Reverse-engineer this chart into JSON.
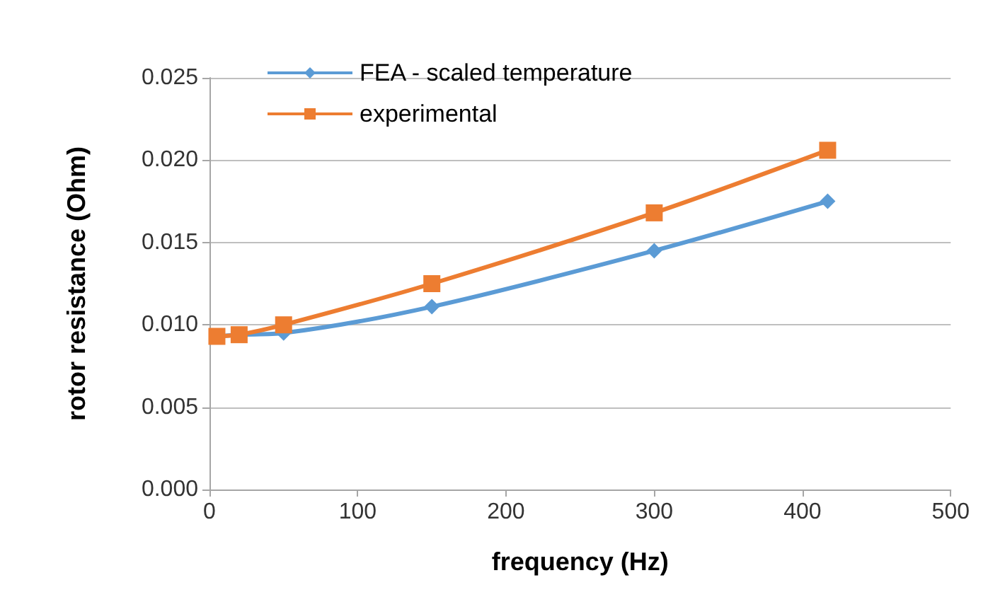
{
  "chart_data": {
    "type": "line",
    "xlabel": "frequency (Hz)",
    "ylabel": "rotor resistance (Ohm)",
    "x": [
      5,
      20,
      50,
      150,
      300,
      417
    ],
    "series": [
      {
        "name": "FEA - scaled temperature",
        "color": "#5b9bd5",
        "marker": "diamond",
        "values": [
          0.0093,
          0.0094,
          0.0095,
          0.0111,
          0.0145,
          0.0175
        ]
      },
      {
        "name": "experimental",
        "color": "#ed7d31",
        "marker": "square",
        "values": [
          0.0093,
          0.0094,
          0.01,
          0.0125,
          0.0168,
          0.0206
        ]
      }
    ],
    "xlim": [
      0,
      500
    ],
    "xticks": [
      0,
      100,
      200,
      300,
      400,
      500
    ],
    "ylim": [
      0,
      0.025
    ],
    "yticks": [
      {
        "value": 0,
        "label": "0.000"
      },
      {
        "value": 0.005,
        "label": "0.005"
      },
      {
        "value": 0.01,
        "label": "0.010"
      },
      {
        "value": 0.015,
        "label": "0.015"
      },
      {
        "value": 0.02,
        "label": "0.020"
      },
      {
        "value": 0.025,
        "label": "0.025"
      }
    ],
    "grid": "y",
    "legend": "top left"
  }
}
